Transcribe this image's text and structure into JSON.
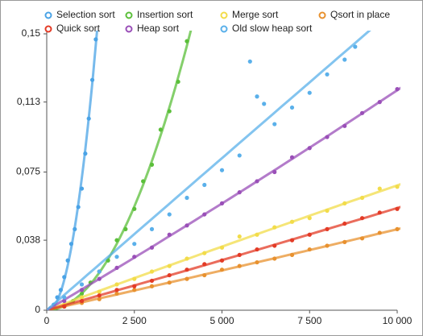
{
  "chart_data": {
    "type": "scatter",
    "xlim": [
      0,
      10000
    ],
    "xticks": [
      0,
      {
        "value": 2500,
        "label": "2 500"
      },
      {
        "value": 5000,
        "label": "5 000"
      },
      {
        "value": 7500,
        "label": "7 500"
      },
      {
        "value": 10000,
        "label": "10 000"
      }
    ],
    "ylim": [
      0,
      0.15
    ],
    "yticks": [
      0,
      {
        "value": 0.038,
        "label": "0,038"
      },
      {
        "value": 0.075,
        "label": "0,075"
      },
      {
        "value": 0.113,
        "label": "0,113"
      },
      {
        "value": 0.15,
        "label": "0,15"
      }
    ],
    "grid": false,
    "legend": "top",
    "trendline": true,
    "series": [
      {
        "name": "Selection sort",
        "color": "#4aa3e6",
        "x": [
          100,
          200,
          300,
          400,
          500,
          600,
          700,
          800,
          900,
          1000,
          1100,
          1200,
          1300,
          1400
        ],
        "values": [
          0.001,
          0.003,
          0.007,
          0.011,
          0.018,
          0.027,
          0.036,
          0.044,
          0.056,
          0.066,
          0.085,
          0.104,
          0.125,
          0.147
        ]
      },
      {
        "name": "Insertion sort",
        "color": "#5bbf3a",
        "x": [
          250,
          500,
          750,
          1000,
          1250,
          1500,
          1750,
          2000,
          2250,
          2500,
          2750,
          3000,
          3250,
          3500,
          3750,
          4000
        ],
        "values": [
          0.001,
          0.002,
          0.005,
          0.009,
          0.015,
          0.021,
          0.027,
          0.038,
          0.044,
          0.055,
          0.07,
          0.079,
          0.098,
          0.108,
          0.124,
          0.146
        ]
      },
      {
        "name": "Merge sort",
        "color": "#f2dc4a",
        "x": [
          500,
          1000,
          1500,
          2000,
          2500,
          3000,
          3500,
          4000,
          4500,
          5000,
          5500,
          6000,
          6500,
          7000,
          7500,
          8000,
          8500,
          9000,
          9500,
          10000
        ],
        "values": [
          0.003,
          0.007,
          0.01,
          0.014,
          0.017,
          0.021,
          0.024,
          0.028,
          0.031,
          0.034,
          0.04,
          0.041,
          0.045,
          0.048,
          0.05,
          0.054,
          0.058,
          0.061,
          0.066,
          0.067
        ]
      },
      {
        "name": "Qsort in place",
        "color": "#e8912f",
        "x": [
          500,
          1000,
          1500,
          2000,
          2500,
          3000,
          3500,
          4000,
          4500,
          5000,
          5500,
          6000,
          6500,
          7000,
          7500,
          8000,
          8500,
          9000,
          9500,
          10000
        ],
        "values": [
          0.002,
          0.004,
          0.006,
          0.009,
          0.011,
          0.013,
          0.015,
          0.017,
          0.019,
          0.022,
          0.024,
          0.026,
          0.028,
          0.03,
          0.033,
          0.035,
          0.037,
          0.039,
          0.042,
          0.044
        ]
      },
      {
        "name": "Quick sort",
        "color": "#e33b26",
        "x": [
          500,
          1000,
          1500,
          2000,
          2500,
          3000,
          3500,
          4000,
          4500,
          5000,
          5500,
          6000,
          6500,
          7000,
          7500,
          8000,
          8500,
          9000,
          9500,
          10000
        ],
        "values": [
          0.002,
          0.005,
          0.008,
          0.011,
          0.013,
          0.016,
          0.019,
          0.022,
          0.025,
          0.027,
          0.03,
          0.033,
          0.035,
          0.038,
          0.041,
          0.044,
          0.047,
          0.05,
          0.053,
          0.055
        ]
      },
      {
        "name": "Heap sort",
        "color": "#9a4fb8",
        "x": [
          500,
          1000,
          1500,
          2000,
          2500,
          3000,
          3500,
          4000,
          4500,
          5000,
          5500,
          6000,
          6500,
          7000,
          7500,
          8000,
          8500,
          9000,
          9500,
          10000
        ],
        "values": [
          0.005,
          0.011,
          0.017,
          0.023,
          0.029,
          0.034,
          0.041,
          0.046,
          0.052,
          0.058,
          0.064,
          0.07,
          0.075,
          0.083,
          0.088,
          0.094,
          0.1,
          0.107,
          0.113,
          0.12
        ]
      },
      {
        "name": "Old slow heap sort",
        "color": "#5ab0ea",
        "x": [
          500,
          1000,
          1500,
          2000,
          2500,
          3000,
          3500,
          4000,
          4500,
          5000,
          5500,
          5800,
          6000,
          6200,
          6500,
          7000,
          7500,
          8000,
          8500,
          8800
        ],
        "values": [
          0.007,
          0.014,
          0.021,
          0.029,
          0.036,
          0.044,
          0.052,
          0.061,
          0.068,
          0.076,
          0.084,
          0.135,
          0.116,
          0.112,
          0.101,
          0.11,
          0.118,
          0.128,
          0.136,
          0.143
        ]
      }
    ]
  }
}
